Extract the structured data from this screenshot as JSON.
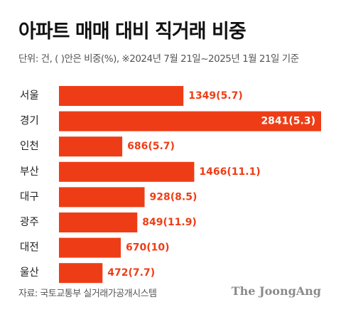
{
  "title": "아파트 매매 대비 직거래 비중",
  "subtitle": "단위: 건, ( )안은 비중(%),  ※2024년 7월 21일~2025년 1월 21일 기준",
  "source": "자료: 국토교통부 실거래가공개시스템",
  "publisher": "The JoongAng",
  "colors": {
    "bar": "#ee3d16",
    "value_outside": "#ee3d16",
    "value_inside": "#ffffff"
  },
  "chart_data": {
    "type": "bar",
    "orientation": "horizontal",
    "categories": [
      "서울",
      "경기",
      "인천",
      "부산",
      "대구",
      "광주",
      "대전",
      "울산"
    ],
    "values": [
      1349,
      2841,
      686,
      1466,
      928,
      849,
      670,
      472
    ],
    "shares": [
      5.7,
      5.3,
      5.7,
      11.1,
      8.5,
      11.9,
      10,
      7.7
    ],
    "value_labels": [
      "1349(5.7)",
      "2841(5.3)",
      "686(5.7)",
      "1466(11.1)",
      "928(8.5)",
      "849(11.9)",
      "670(10)",
      "472(7.7)"
    ],
    "xlim": [
      0,
      2841
    ],
    "grid": false,
    "legend": "none"
  }
}
